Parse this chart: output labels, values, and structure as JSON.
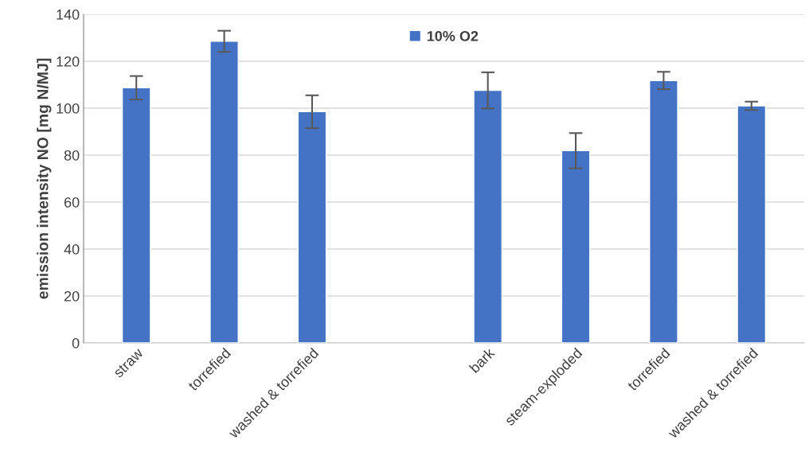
{
  "chart_data": {
    "type": "bar",
    "ylabel": "emission intensity NO [mg N/MJ]",
    "categories": [
      "straw",
      "torrefied",
      "washed & torrefied",
      null,
      "bark",
      "steam-exploded",
      "torrefied",
      "washed & torrefied"
    ],
    "series": [
      {
        "name": "10% O2",
        "color": "#4472c4",
        "values": [
          108.7,
          128.5,
          98.5,
          null,
          107.6,
          81.9,
          111.8,
          101.0
        ],
        "errors": [
          5.0,
          4.5,
          7.0,
          null,
          7.7,
          7.5,
          3.7,
          1.8
        ]
      }
    ],
    "ylim": [
      0,
      140
    ],
    "yticks": [
      0,
      20,
      40,
      60,
      80,
      100,
      120,
      140
    ],
    "grid": "y",
    "legend": "top"
  }
}
